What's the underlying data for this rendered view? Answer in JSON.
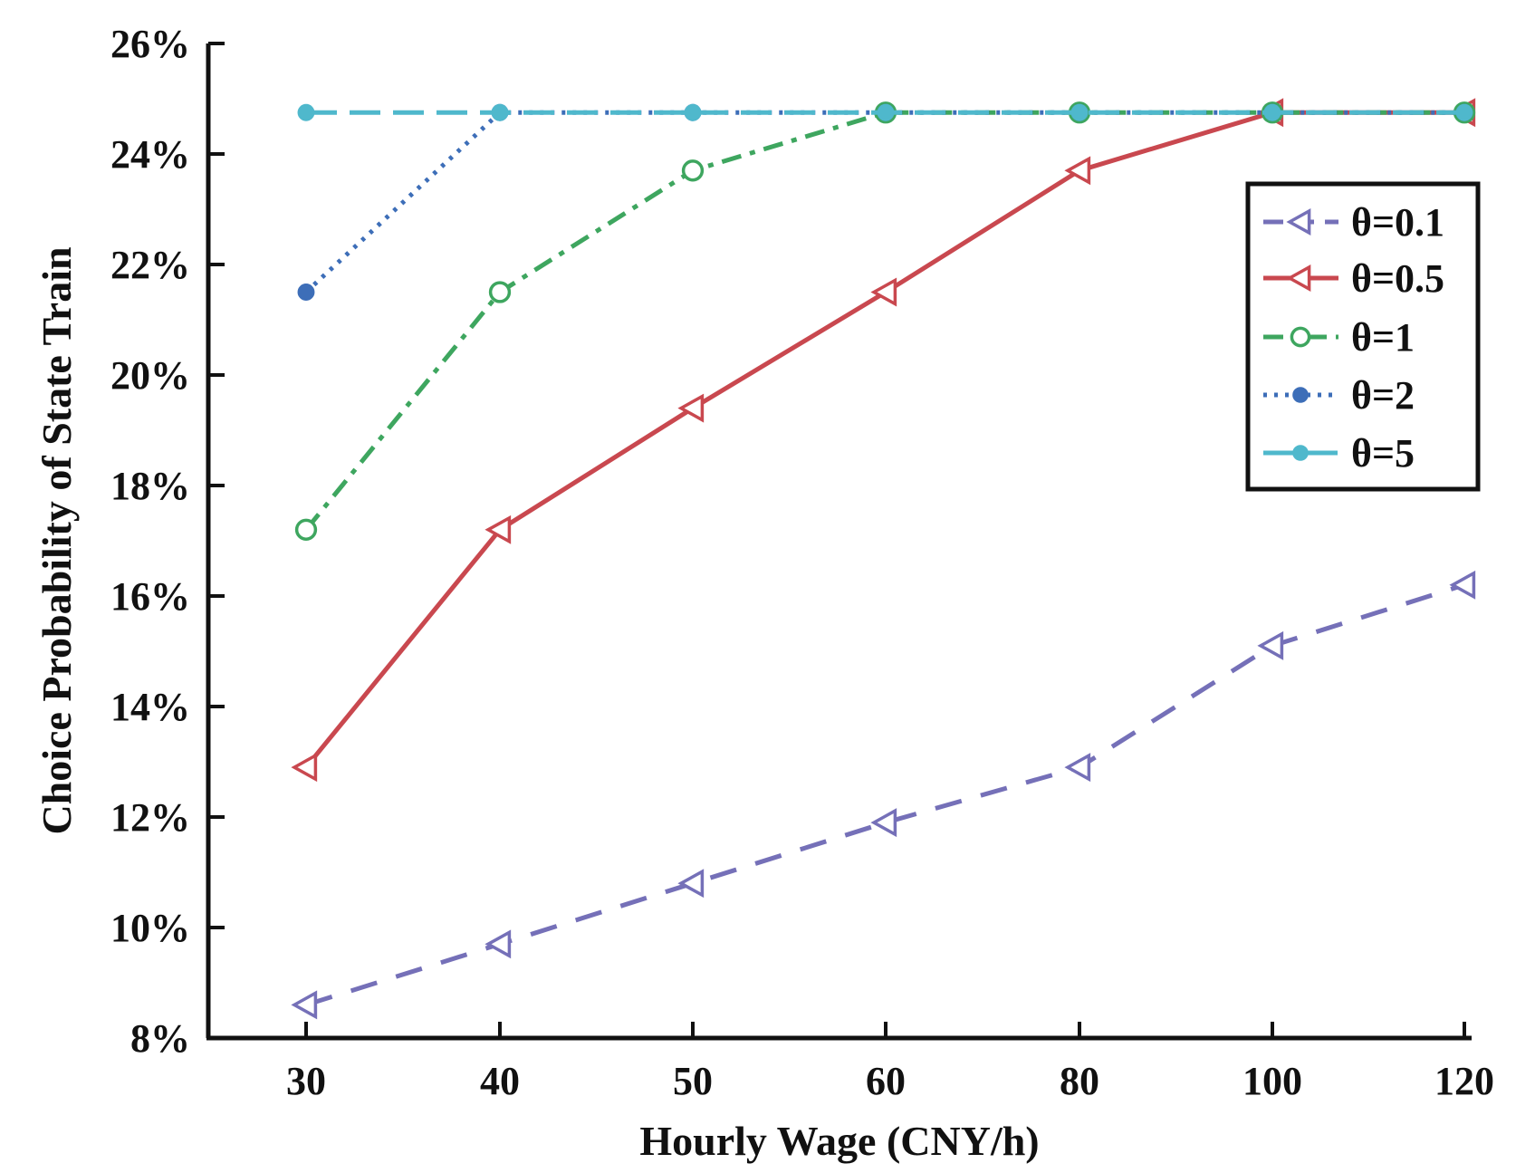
{
  "chart_data": {
    "type": "line",
    "title": "",
    "xlabel": "Hourly Wage (CNY/h)",
    "ylabel": "Choice Probability of State Train",
    "categories": [
      "30",
      "40",
      "50",
      "60",
      "80",
      "100",
      "120"
    ],
    "y_ticks": [
      {
        "value": 8,
        "label": "8%"
      },
      {
        "value": 10,
        "label": "10%"
      },
      {
        "value": 12,
        "label": "12%"
      },
      {
        "value": 14,
        "label": "14%"
      },
      {
        "value": 16,
        "label": "16%"
      },
      {
        "value": 18,
        "label": "18%"
      },
      {
        "value": 20,
        "label": "20%"
      },
      {
        "value": 22,
        "label": "22%"
      },
      {
        "value": 24,
        "label": "24%"
      },
      {
        "value": 26,
        "label": "26%"
      }
    ],
    "ylim": [
      8,
      26
    ],
    "grid": false,
    "legend_position": "top-right",
    "series": [
      {
        "name": "θ=0.1",
        "color": "#7570b8",
        "line_style": "dashed",
        "marker": "triangle-left-open",
        "values": [
          8.6,
          9.7,
          10.8,
          11.9,
          12.9,
          15.1,
          16.2
        ]
      },
      {
        "name": "θ=0.5",
        "color": "#c9484f",
        "line_style": "solid",
        "marker": "triangle-left-open",
        "values": [
          12.9,
          17.2,
          19.4,
          21.5,
          23.7,
          24.75,
          24.75
        ]
      },
      {
        "name": "θ=1",
        "color": "#3ea65f",
        "line_style": "dash-dot",
        "marker": "circle-open",
        "values": [
          17.2,
          21.5,
          23.7,
          24.75,
          24.75,
          24.75,
          24.75
        ]
      },
      {
        "name": "θ=2",
        "color": "#3d6eb8",
        "line_style": "dotted",
        "marker": "circle-filled",
        "values": [
          21.5,
          24.75,
          24.75,
          24.75,
          24.75,
          24.75,
          24.75
        ]
      },
      {
        "name": "θ=5",
        "color": "#4fb8cc",
        "line_style": "long-dash",
        "marker": "circle-filled",
        "values": [
          24.75,
          24.75,
          24.75,
          24.75,
          24.75,
          24.75,
          24.75
        ]
      }
    ]
  }
}
